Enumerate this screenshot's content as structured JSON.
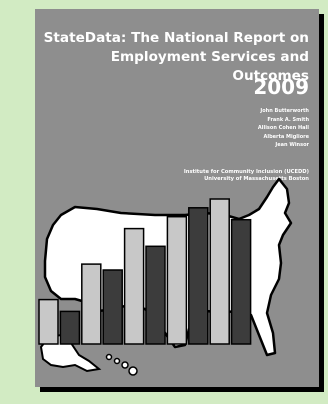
{
  "cover": {
    "title_line1": "StateData: The National Report on",
    "title_line2": "Employment Services and Outcomes",
    "year": "2009",
    "authors": [
      "John Butterworth",
      "Frank A. Smith",
      "Allison Cohen Hall",
      "Alberta Migliore",
      "Jean Winsor"
    ],
    "institute_line1": "Institute for Community Inclusion (UCEDD)",
    "institute_line2": "University of Massachusetts Boston"
  },
  "colors": {
    "page_background": "#d2ebc3",
    "cover_background": "#8e8e8e",
    "map_fill": "#ffffff",
    "bar_light": "#c8c8c8",
    "bar_dark": "#3c3c3c"
  },
  "illustration": {
    "map_icon": "us-map-icon",
    "bars": [
      {
        "shade": "light",
        "level": 0.3
      },
      {
        "shade": "dark",
        "level": 0.22
      },
      {
        "shade": "light",
        "level": 0.54
      },
      {
        "shade": "dark",
        "level": 0.5
      },
      {
        "shade": "light",
        "level": 0.78
      },
      {
        "shade": "dark",
        "level": 0.66
      },
      {
        "shade": "light",
        "level": 0.86
      },
      {
        "shade": "dark",
        "level": 0.92
      },
      {
        "shade": "light",
        "level": 0.98
      },
      {
        "shade": "dark",
        "level": 0.84
      }
    ]
  }
}
